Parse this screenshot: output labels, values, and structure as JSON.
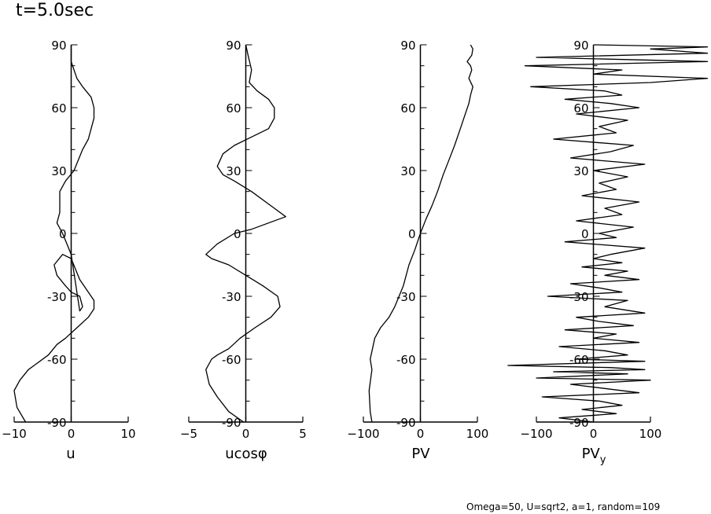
{
  "title": "t=5.0sec",
  "footer": "Omega=50, U=sqrt2, a=1, random=109",
  "chart_data": [
    {
      "type": "line",
      "xlabel": "u",
      "xlim": [
        -10,
        10
      ],
      "xticks": [
        "−10",
        "0",
        "10"
      ],
      "ylim": [
        -90,
        90
      ],
      "yticks": [
        "-90",
        "-60",
        "-30",
        "0",
        "30",
        "60",
        "90"
      ],
      "series": [
        {
          "x": [
            -8,
            -9.5,
            -10,
            -9,
            -7.5,
            -6.5,
            -4,
            -2.5,
            -1,
            1,
            3,
            4,
            4,
            3,
            1.5,
            0,
            -1.5,
            -3,
            -2.5,
            -1,
            0,
            1.5,
            2,
            1.5,
            0,
            -1.5,
            -2.5,
            -2,
            -2,
            -1,
            0.5,
            2,
            3,
            3.5,
            4,
            4,
            3.5,
            2,
            1,
            0.5,
            0,
            0
          ],
          "y": [
            -90,
            -83,
            -75,
            -70,
            -65,
            -63,
            -58,
            -53,
            -50,
            -45,
            -40,
            -36,
            -32,
            -28,
            -22,
            -12,
            -10,
            -15,
            -20,
            -25,
            -28,
            -30,
            -35,
            -37,
            -10,
            0,
            5,
            10,
            20,
            25,
            30,
            40,
            45,
            50,
            55,
            60,
            65,
            70,
            74,
            78,
            82,
            90
          ]
        }
      ]
    },
    {
      "type": "line",
      "xlabel": "ucosφ",
      "xlim": [
        -5,
        5
      ],
      "xticks": [
        "−5",
        "0",
        "5"
      ],
      "ylim": [
        -90,
        90
      ],
      "yticks": [
        "-90",
        "-60",
        "-30",
        "0",
        "30",
        "60",
        "90"
      ],
      "series": [
        {
          "x": [
            -0.2,
            -1.5,
            -2.5,
            -3.2,
            -3.5,
            -3,
            -2.5,
            -1.5,
            -0.5,
            0.8,
            2.2,
            3,
            2.8,
            1.5,
            0,
            -1.5,
            -3,
            -3.5,
            -2.5,
            -1,
            0.5,
            2,
            3.5,
            2.5,
            0.5,
            -1,
            -2,
            -2.5,
            -2,
            -1,
            0.5,
            2,
            2.5,
            2.5,
            2,
            1,
            0.3,
            0.5,
            0.2,
            0
          ],
          "y": [
            -90,
            -85,
            -78,
            -72,
            -65,
            -60,
            -58,
            -55,
            -50,
            -45,
            -40,
            -35,
            -30,
            -25,
            -20,
            -15,
            -12,
            -10,
            -5,
            0,
            2,
            5,
            8,
            12,
            20,
            25,
            28,
            32,
            38,
            42,
            46,
            50,
            55,
            60,
            64,
            68,
            72,
            78,
            85,
            90
          ]
        }
      ]
    },
    {
      "type": "line",
      "xlabel": "PV",
      "xlim": [
        -100,
        100
      ],
      "xticks": [
        "−100",
        "0",
        "100"
      ],
      "ylim": [
        -90,
        90
      ],
      "yticks": [
        "-90",
        "-60",
        "-30",
        "0",
        "30",
        "60",
        "90"
      ],
      "series": [
        {
          "x": [
            -85,
            -88,
            -90,
            -85,
            -88,
            -80,
            -70,
            -55,
            -45,
            -30,
            -20,
            -10,
            0,
            10,
            20,
            30,
            40,
            50,
            60,
            70,
            80,
            85,
            88,
            92,
            85,
            90,
            88,
            82,
            90,
            92,
            88
          ],
          "y": [
            -90,
            -85,
            -75,
            -65,
            -60,
            -50,
            -45,
            -40,
            -35,
            -25,
            -15,
            -8,
            0,
            7,
            13,
            20,
            28,
            35,
            42,
            50,
            58,
            62,
            66,
            70,
            74,
            78,
            80,
            82,
            85,
            88,
            90
          ]
        }
      ]
    },
    {
      "type": "line",
      "xlabel": "PV",
      "xlabel_sub": "y",
      "xlim": [
        -100,
        100
      ],
      "xticks": [
        "−100",
        "0",
        "100"
      ],
      "ylim": [
        -90,
        90
      ],
      "yticks": [
        "-90",
        "-60",
        "-30",
        "0",
        "30",
        "60",
        "90"
      ],
      "series": [
        {
          "x": [
            0,
            -60,
            40,
            -20,
            50,
            10,
            -90,
            80,
            20,
            -40,
            100,
            -100,
            60,
            -70,
            90,
            30,
            -150,
            90,
            -30,
            60,
            20,
            -60,
            80,
            0,
            40,
            -50,
            70,
            10,
            -30,
            90,
            20,
            60,
            -80,
            50,
            10,
            -40,
            80,
            20,
            60,
            -20,
            50,
            0,
            30,
            90,
            -50,
            40,
            10,
            70,
            -30,
            50,
            20,
            80,
            -20,
            40,
            10,
            60,
            0,
            90,
            -40,
            30,
            70,
            -70,
            40,
            10,
            60,
            -30,
            80,
            30,
            -50,
            50,
            20,
            -110,
            100,
            200,
            0,
            50,
            -120,
            200,
            -100,
            200,
            100,
            200,
            0
          ],
          "y": [
            -90,
            -88,
            -86,
            -84,
            -82,
            -80,
            -78,
            -76,
            -74,
            -72,
            -70,
            -69,
            -67,
            -66,
            -65,
            -64,
            -63,
            -61,
            -60,
            -58,
            -56,
            -54,
            -52,
            -50,
            -48,
            -46,
            -44,
            -42,
            -40,
            -38,
            -35,
            -32,
            -30,
            -28,
            -26,
            -24,
            -22,
            -20,
            -18,
            -16,
            -14,
            -12,
            -10,
            -7,
            -4,
            -2,
            0,
            3,
            6,
            9,
            12,
            15,
            18,
            21,
            24,
            27,
            30,
            33,
            36,
            39,
            42,
            45,
            48,
            51,
            54,
            57,
            60,
            62,
            64,
            66,
            68,
            70,
            72,
            74,
            76,
            78,
            80,
            82,
            84,
            86,
            88,
            89,
            90
          ]
        }
      ]
    }
  ]
}
